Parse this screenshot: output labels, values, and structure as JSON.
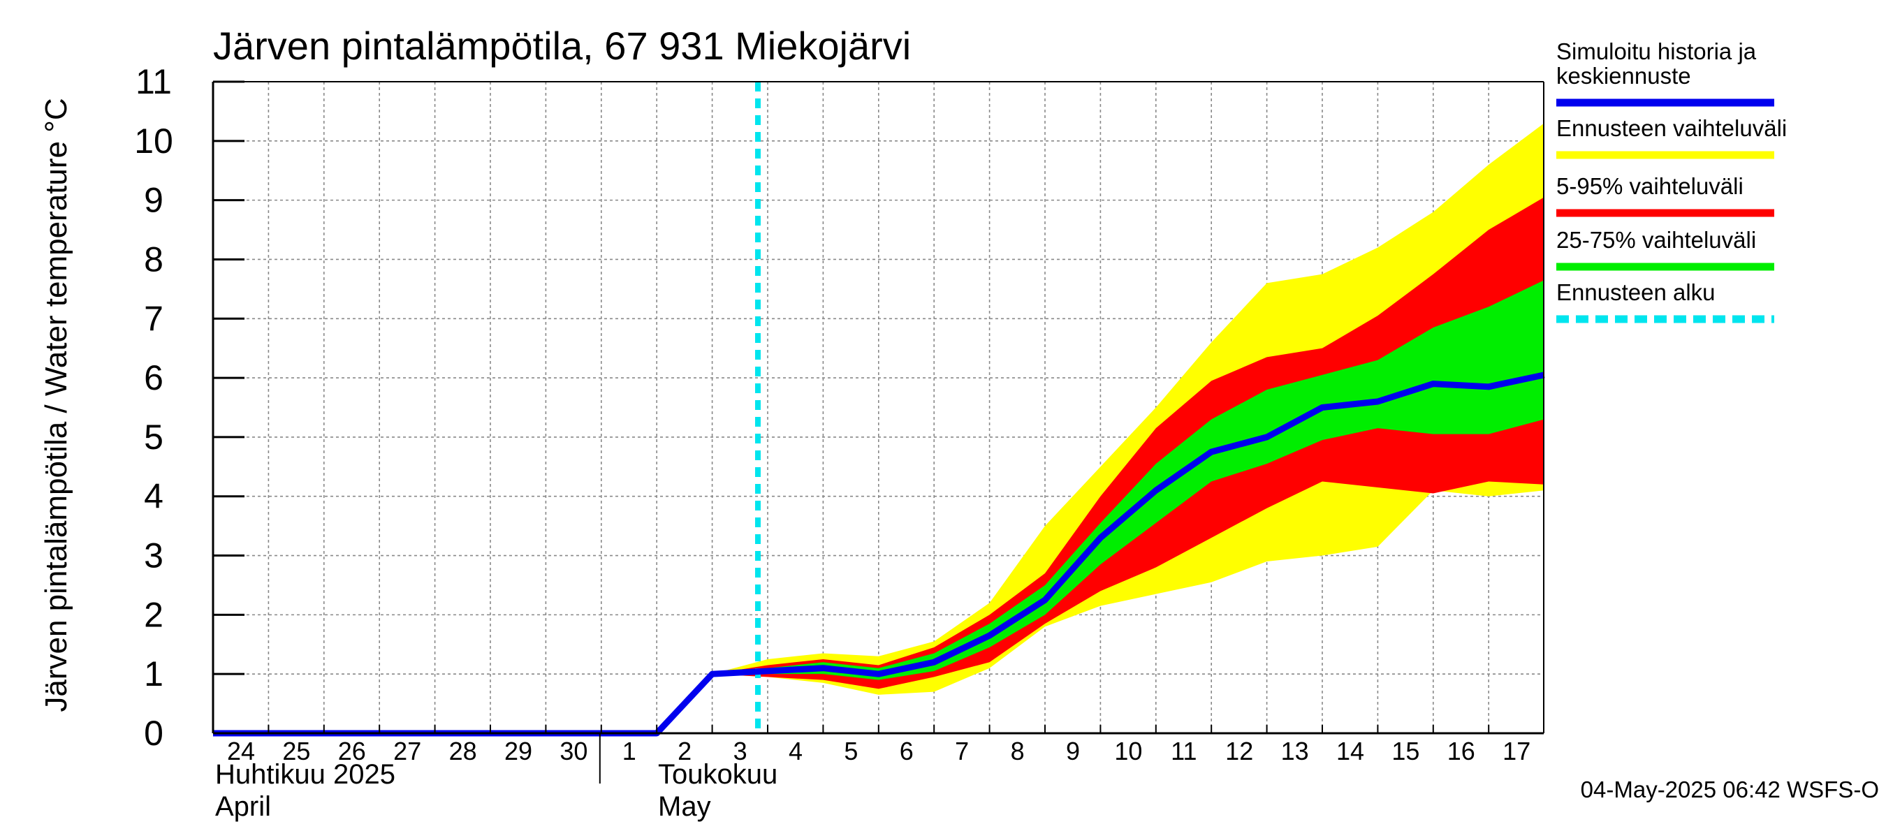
{
  "chart_data": {
    "type": "area",
    "title": "Järven pintalämpötila, 67 931 Miekojärvi",
    "ylabel": "Järven pintalämpötila / Water temperature °C",
    "xlabel": "",
    "ylim": [
      0,
      11
    ],
    "yticks": [
      "0",
      "1",
      "2",
      "3",
      "4",
      "5",
      "6",
      "7",
      "8",
      "9",
      "10",
      "11"
    ],
    "grid": true,
    "legend_position": "right",
    "x_dates": [
      "2025-04-24",
      "2025-04-25",
      "2025-04-26",
      "2025-04-27",
      "2025-04-28",
      "2025-04-29",
      "2025-04-30",
      "2025-05-01",
      "2025-05-02",
      "2025-05-03",
      "2025-05-04",
      "2025-05-05",
      "2025-05-06",
      "2025-05-07",
      "2025-05-08",
      "2025-05-09",
      "2025-05-10",
      "2025-05-11",
      "2025-05-12",
      "2025-05-13",
      "2025-05-14",
      "2025-05-15",
      "2025-05-16",
      "2025-05-17",
      "2025-05-18"
    ],
    "xtick_labels": [
      "24",
      "25",
      "26",
      "27",
      "28",
      "29",
      "30",
      "1",
      "2",
      "3",
      "4",
      "5",
      "6",
      "7",
      "8",
      "9",
      "10",
      "11",
      "12",
      "13",
      "14",
      "15",
      "16",
      "17"
    ],
    "month_labels": [
      {
        "fi": "Huhtikuu  2025",
        "en": "April"
      },
      {
        "fi": "Toukokuu",
        "en": "May"
      }
    ],
    "forecast_start": "2025-05-04",
    "band_dates": [
      "2025-05-03",
      "2025-05-04",
      "2025-05-05",
      "2025-05-06",
      "2025-05-07",
      "2025-05-08",
      "2025-05-09",
      "2025-05-10",
      "2025-05-11",
      "2025-05-12",
      "2025-05-13",
      "2025-05-14",
      "2025-05-15",
      "2025-05-16",
      "2025-05-17",
      "2025-05-18"
    ],
    "series": [
      {
        "name": "Ennusteen vaihteluväli",
        "color": "#ffff00",
        "upper": [
          1.0,
          1.25,
          1.35,
          1.3,
          1.55,
          2.2,
          3.5,
          4.5,
          5.5,
          6.6,
          7.6,
          7.75,
          8.2,
          8.8,
          9.6,
          10.3
        ],
        "lower": [
          1.0,
          0.95,
          0.85,
          0.65,
          0.7,
          1.1,
          1.8,
          2.15,
          2.35,
          2.55,
          2.9,
          3.0,
          3.15,
          4.1,
          4.0,
          4.1
        ]
      },
      {
        "name": "5-95% vaihteluväli",
        "color": "#ff0000",
        "upper": [
          1.0,
          1.15,
          1.25,
          1.15,
          1.45,
          2.0,
          2.7,
          4.0,
          5.15,
          5.95,
          6.35,
          6.5,
          7.05,
          7.75,
          8.5,
          9.05
        ],
        "lower": [
          1.0,
          0.95,
          0.9,
          0.75,
          0.95,
          1.2,
          1.85,
          2.4,
          2.8,
          3.3,
          3.8,
          4.25,
          4.15,
          4.05,
          4.25,
          4.2
        ]
      },
      {
        "name": "25-75% vaihteluväli",
        "color": "#00ee00",
        "upper": [
          1.0,
          1.1,
          1.2,
          1.1,
          1.35,
          1.85,
          2.5,
          3.55,
          4.55,
          5.3,
          5.8,
          6.05,
          6.3,
          6.85,
          7.2,
          7.65
        ],
        "lower": [
          1.0,
          1.0,
          1.0,
          0.9,
          1.05,
          1.45,
          2.0,
          2.85,
          3.55,
          4.25,
          4.55,
          4.95,
          5.15,
          5.05,
          5.05,
          5.3
        ]
      }
    ],
    "median": {
      "name": "Simuloitu historia ja keskiennuste",
      "color": "#0000ee",
      "dates": [
        "2025-04-24",
        "2025-05-02",
        "2025-05-03",
        "2025-05-04",
        "2025-05-05",
        "2025-05-06",
        "2025-05-07",
        "2025-05-08",
        "2025-05-09",
        "2025-05-10",
        "2025-05-11",
        "2025-05-12",
        "2025-05-13",
        "2025-05-14",
        "2025-05-15",
        "2025-05-16",
        "2025-05-17",
        "2025-05-18"
      ],
      "values": [
        0,
        0,
        1.0,
        1.05,
        1.1,
        1.0,
        1.2,
        1.65,
        2.25,
        3.3,
        4.1,
        4.75,
        5.0,
        5.5,
        5.6,
        5.9,
        5.85,
        6.05
      ]
    },
    "legend": [
      {
        "label_line1": "Simuloitu historia ja",
        "label_line2": "keskiennuste",
        "color": "#0000ee",
        "style": "solid"
      },
      {
        "label_line1": "Ennusteen vaihteluväli",
        "color": "#ffff00",
        "style": "solid"
      },
      {
        "label_line1": "5-95% vaihteluväli",
        "color": "#ff0000",
        "style": "solid"
      },
      {
        "label_line1": "25-75% vaihteluväli",
        "color": "#00ee00",
        "style": "solid"
      },
      {
        "label_line1": "Ennusteen alku",
        "color": "#00e5ee",
        "style": "dashed"
      }
    ],
    "footer": "04-May-2025 06:42 WSFS-O"
  }
}
